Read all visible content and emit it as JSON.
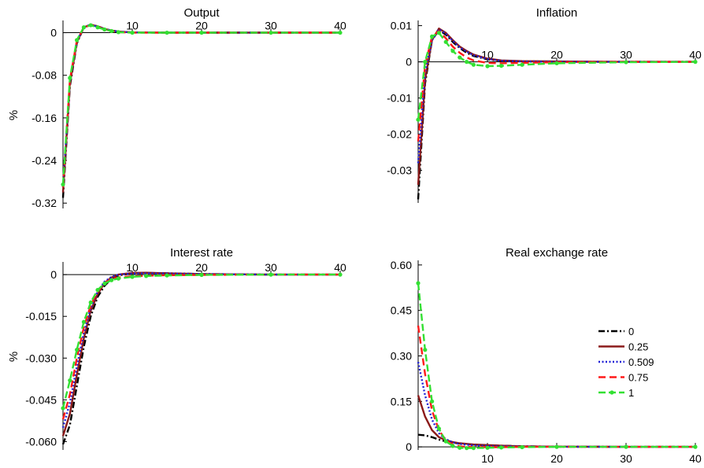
{
  "chart_data": [
    {
      "type": "line",
      "id": "output",
      "title": "Output",
      "ylabel": "%",
      "xlim": [
        0,
        40
      ],
      "ylim": [
        -0.33,
        0.02
      ],
      "x_ticks": [
        10,
        20,
        30,
        40
      ],
      "y_ticks": [
        0,
        -0.08,
        -0.16,
        -0.24,
        -0.32
      ],
      "y_tick_labels": [
        "0",
        "-0.08",
        "-0.16",
        "-0.24",
        "-0.32"
      ],
      "grid": false,
      "series": [
        {
          "name": "0",
          "x": [
            0,
            1,
            2,
            3,
            4,
            5,
            6,
            7,
            8,
            10,
            15,
            20,
            30,
            40
          ],
          "values": [
            -0.31,
            -0.1,
            -0.02,
            0.01,
            0.015,
            0.012,
            0.007,
            0.004,
            0.002,
            0.0005,
            0,
            0,
            0,
            0
          ]
        },
        {
          "name": "0.25",
          "x": [
            0,
            1,
            2,
            3,
            4,
            5,
            6,
            7,
            8,
            10,
            15,
            20,
            30,
            40
          ],
          "values": [
            -0.3,
            -0.095,
            -0.018,
            0.01,
            0.015,
            0.012,
            0.007,
            0.004,
            0.002,
            0.0005,
            0,
            0,
            0,
            0
          ]
        },
        {
          "name": "0.509",
          "x": [
            0,
            1,
            2,
            3,
            4,
            5,
            6,
            7,
            8,
            10,
            15,
            20,
            30,
            40
          ],
          "values": [
            -0.29,
            -0.09,
            -0.016,
            0.01,
            0.015,
            0.011,
            0.007,
            0.004,
            0.002,
            0.0005,
            0,
            0,
            0,
            0
          ]
        },
        {
          "name": "0.75",
          "x": [
            0,
            1,
            2,
            3,
            4,
            5,
            6,
            7,
            8,
            10,
            15,
            20,
            30,
            40
          ],
          "values": [
            -0.29,
            -0.088,
            -0.015,
            0.01,
            0.014,
            0.011,
            0.006,
            0.003,
            0.001,
            0,
            0,
            0,
            0,
            0
          ]
        },
        {
          "name": "1",
          "x": [
            0,
            1,
            2,
            3,
            4,
            5,
            6,
            7,
            8,
            10,
            15,
            20,
            30,
            40
          ],
          "values": [
            -0.285,
            -0.085,
            -0.014,
            0.01,
            0.014,
            0.01,
            0.006,
            0.003,
            0.001,
            0,
            0,
            0,
            0,
            0
          ]
        }
      ]
    },
    {
      "type": "line",
      "id": "inflation",
      "title": "Inflation",
      "ylabel": "",
      "xlim": [
        0,
        40
      ],
      "ylim": [
        -0.039,
        0.011
      ],
      "x_ticks": [
        10,
        20,
        30,
        40
      ],
      "y_ticks": [
        0.01,
        0,
        -0.01,
        -0.02,
        -0.03
      ],
      "y_tick_labels": [
        "0.01",
        "0",
        "-0.01",
        "-0.02",
        "-0.03"
      ],
      "grid": false,
      "series": [
        {
          "name": "0",
          "x": [
            0,
            1,
            2,
            3,
            4,
            5,
            6,
            7,
            8,
            10,
            12,
            15,
            20,
            30,
            40
          ],
          "values": [
            -0.038,
            -0.006,
            0.006,
            0.0088,
            0.0075,
            0.0055,
            0.0038,
            0.0025,
            0.0016,
            0.0007,
            0.0003,
            0.0001,
            0,
            0,
            0
          ]
        },
        {
          "name": "0.25",
          "x": [
            0,
            1,
            2,
            3,
            4,
            5,
            6,
            7,
            8,
            10,
            12,
            15,
            20,
            30,
            40
          ],
          "values": [
            -0.034,
            -0.005,
            0.006,
            0.0092,
            0.008,
            0.006,
            0.0042,
            0.003,
            0.002,
            0.0009,
            0.0004,
            0.0002,
            0.0001,
            0,
            0
          ]
        },
        {
          "name": "0.509",
          "x": [
            0,
            1,
            2,
            3,
            4,
            5,
            6,
            7,
            8,
            10,
            12,
            15,
            20,
            30,
            40
          ],
          "values": [
            -0.028,
            -0.003,
            0.006,
            0.009,
            0.0078,
            0.0058,
            0.004,
            0.0028,
            0.0018,
            0.0008,
            0.0003,
            0.0001,
            0,
            0,
            0
          ]
        },
        {
          "name": "0.75",
          "x": [
            0,
            1,
            2,
            3,
            4,
            5,
            6,
            7,
            8,
            10,
            12,
            15,
            20,
            30,
            40
          ],
          "values": [
            -0.022,
            -0.001,
            0.007,
            0.0085,
            0.0065,
            0.0042,
            0.0025,
            0.0012,
            0.0004,
            -0.0003,
            -0.0004,
            -0.0003,
            -0.0001,
            0,
            0
          ]
        },
        {
          "name": "1",
          "x": [
            0,
            1,
            2,
            3,
            4,
            5,
            6,
            7,
            8,
            10,
            12,
            15,
            20,
            30,
            40
          ],
          "values": [
            -0.016,
            0.0,
            0.007,
            0.008,
            0.0055,
            0.003,
            0.0012,
            0.0,
            -0.0008,
            -0.0012,
            -0.0011,
            -0.0008,
            -0.0004,
            -0.0001,
            0
          ]
        }
      ]
    },
    {
      "type": "line",
      "id": "interest",
      "title": "Interest rate",
      "ylabel": "%",
      "xlim": [
        0,
        40
      ],
      "ylim": [
        -0.063,
        0.004
      ],
      "x_ticks": [
        10,
        20,
        30,
        40
      ],
      "y_ticks": [
        0,
        -0.015,
        -0.03,
        -0.045,
        -0.06
      ],
      "y_tick_labels": [
        "0",
        "-0.015",
        "-0.030",
        "-0.045",
        "-0.060"
      ],
      "grid": false,
      "series": [
        {
          "name": "0",
          "x": [
            0,
            1,
            2,
            3,
            4,
            5,
            6,
            7,
            8,
            10,
            12,
            15,
            20,
            30,
            40
          ],
          "values": [
            -0.061,
            -0.054,
            -0.04,
            -0.026,
            -0.015,
            -0.008,
            -0.004,
            -0.0015,
            -0.0003,
            0.0005,
            0.0006,
            0.0005,
            0.0002,
            0,
            0
          ]
        },
        {
          "name": "0.25",
          "x": [
            0,
            1,
            2,
            3,
            4,
            5,
            6,
            7,
            8,
            10,
            12,
            15,
            20,
            30,
            40
          ],
          "values": [
            -0.058,
            -0.05,
            -0.036,
            -0.023,
            -0.013,
            -0.007,
            -0.003,
            -0.001,
            0.0,
            0.0006,
            0.0007,
            0.0005,
            0.0002,
            0,
            0
          ]
        },
        {
          "name": "0.509",
          "x": [
            0,
            1,
            2,
            3,
            4,
            5,
            6,
            7,
            8,
            10,
            12,
            15,
            20,
            30,
            40
          ],
          "values": [
            -0.055,
            -0.046,
            -0.033,
            -0.021,
            -0.012,
            -0.006,
            -0.0025,
            -0.0008,
            0.0,
            0.0004,
            0.0005,
            0.0004,
            0.0002,
            0,
            0
          ]
        },
        {
          "name": "0.75",
          "x": [
            0,
            1,
            2,
            3,
            4,
            5,
            6,
            7,
            8,
            10,
            12,
            15,
            20,
            30,
            40
          ],
          "values": [
            -0.052,
            -0.043,
            -0.03,
            -0.019,
            -0.011,
            -0.006,
            -0.003,
            -0.0015,
            -0.001,
            -0.0006,
            -0.0004,
            -0.0002,
            -0.0001,
            0,
            0
          ]
        },
        {
          "name": "1",
          "x": [
            0,
            1,
            2,
            3,
            4,
            5,
            6,
            7,
            8,
            10,
            12,
            15,
            20,
            30,
            40
          ],
          "values": [
            -0.048,
            -0.038,
            -0.027,
            -0.017,
            -0.01,
            -0.0055,
            -0.0032,
            -0.002,
            -0.0014,
            -0.0008,
            -0.0005,
            -0.0003,
            -0.0001,
            0,
            0
          ]
        }
      ]
    },
    {
      "type": "line",
      "id": "real-exchange",
      "title": "Real exchange rate",
      "ylabel": "",
      "xlim": [
        0,
        40
      ],
      "ylim": [
        -0.01,
        0.61
      ],
      "x_ticks": [
        10,
        20,
        30,
        40
      ],
      "y_ticks": [
        0.6,
        0.45,
        0.3,
        0.15,
        0
      ],
      "y_tick_labels": [
        "0.60",
        "0.45",
        "0.30",
        "0.15",
        "0"
      ],
      "grid": false,
      "legend": "center-right",
      "series": [
        {
          "name": "0",
          "x": [
            0,
            1,
            2,
            3,
            4,
            5,
            6,
            7,
            8,
            10,
            12,
            15,
            20,
            30,
            40
          ],
          "values": [
            0.04,
            0.038,
            0.032,
            0.024,
            0.018,
            0.014,
            0.011,
            0.009,
            0.007,
            0.005,
            0.004,
            0.002,
            0.001,
            0,
            0
          ]
        },
        {
          "name": "0.25",
          "x": [
            0,
            1,
            2,
            3,
            4,
            5,
            6,
            7,
            8,
            10,
            12,
            15,
            20,
            30,
            40
          ],
          "values": [
            0.17,
            0.1,
            0.055,
            0.032,
            0.022,
            0.016,
            0.012,
            0.01,
            0.008,
            0.006,
            0.004,
            0.002,
            0.001,
            0,
            0
          ]
        },
        {
          "name": "0.509",
          "x": [
            0,
            1,
            2,
            3,
            4,
            5,
            6,
            7,
            8,
            10,
            12,
            15,
            20,
            30,
            40
          ],
          "values": [
            0.28,
            0.17,
            0.09,
            0.045,
            0.025,
            0.015,
            0.01,
            0.007,
            0.005,
            0.003,
            0.002,
            0.001,
            0,
            0,
            0
          ]
        },
        {
          "name": "0.75",
          "x": [
            0,
            1,
            2,
            3,
            4,
            5,
            6,
            7,
            8,
            10,
            12,
            15,
            20,
            30,
            40
          ],
          "values": [
            0.4,
            0.24,
            0.12,
            0.055,
            0.022,
            0.008,
            0.002,
            0.0,
            -0.001,
            -0.001,
            -0.001,
            0,
            0,
            0,
            0
          ]
        },
        {
          "name": "1",
          "x": [
            0,
            1,
            2,
            3,
            4,
            5,
            6,
            7,
            8,
            10,
            12,
            15,
            20,
            30,
            40
          ],
          "values": [
            0.54,
            0.32,
            0.15,
            0.06,
            0.018,
            0.003,
            -0.003,
            -0.004,
            -0.004,
            -0.003,
            -0.002,
            -0.001,
            0,
            0,
            0
          ]
        }
      ]
    }
  ],
  "series_styles": [
    {
      "name": "0",
      "color": "#000000",
      "dash": "8,3,2,3",
      "marker": false
    },
    {
      "name": "0.25",
      "color": "#8b1a1a",
      "dash": "",
      "marker": false
    },
    {
      "name": "0.509",
      "color": "#1f1fd6",
      "dash": "2,2.5",
      "marker": false
    },
    {
      "name": "0.75",
      "color": "#ff1a1a",
      "dash": "9,5",
      "marker": false
    },
    {
      "name": "1",
      "color": "#33e033",
      "dash": "9,4",
      "marker": true
    }
  ]
}
